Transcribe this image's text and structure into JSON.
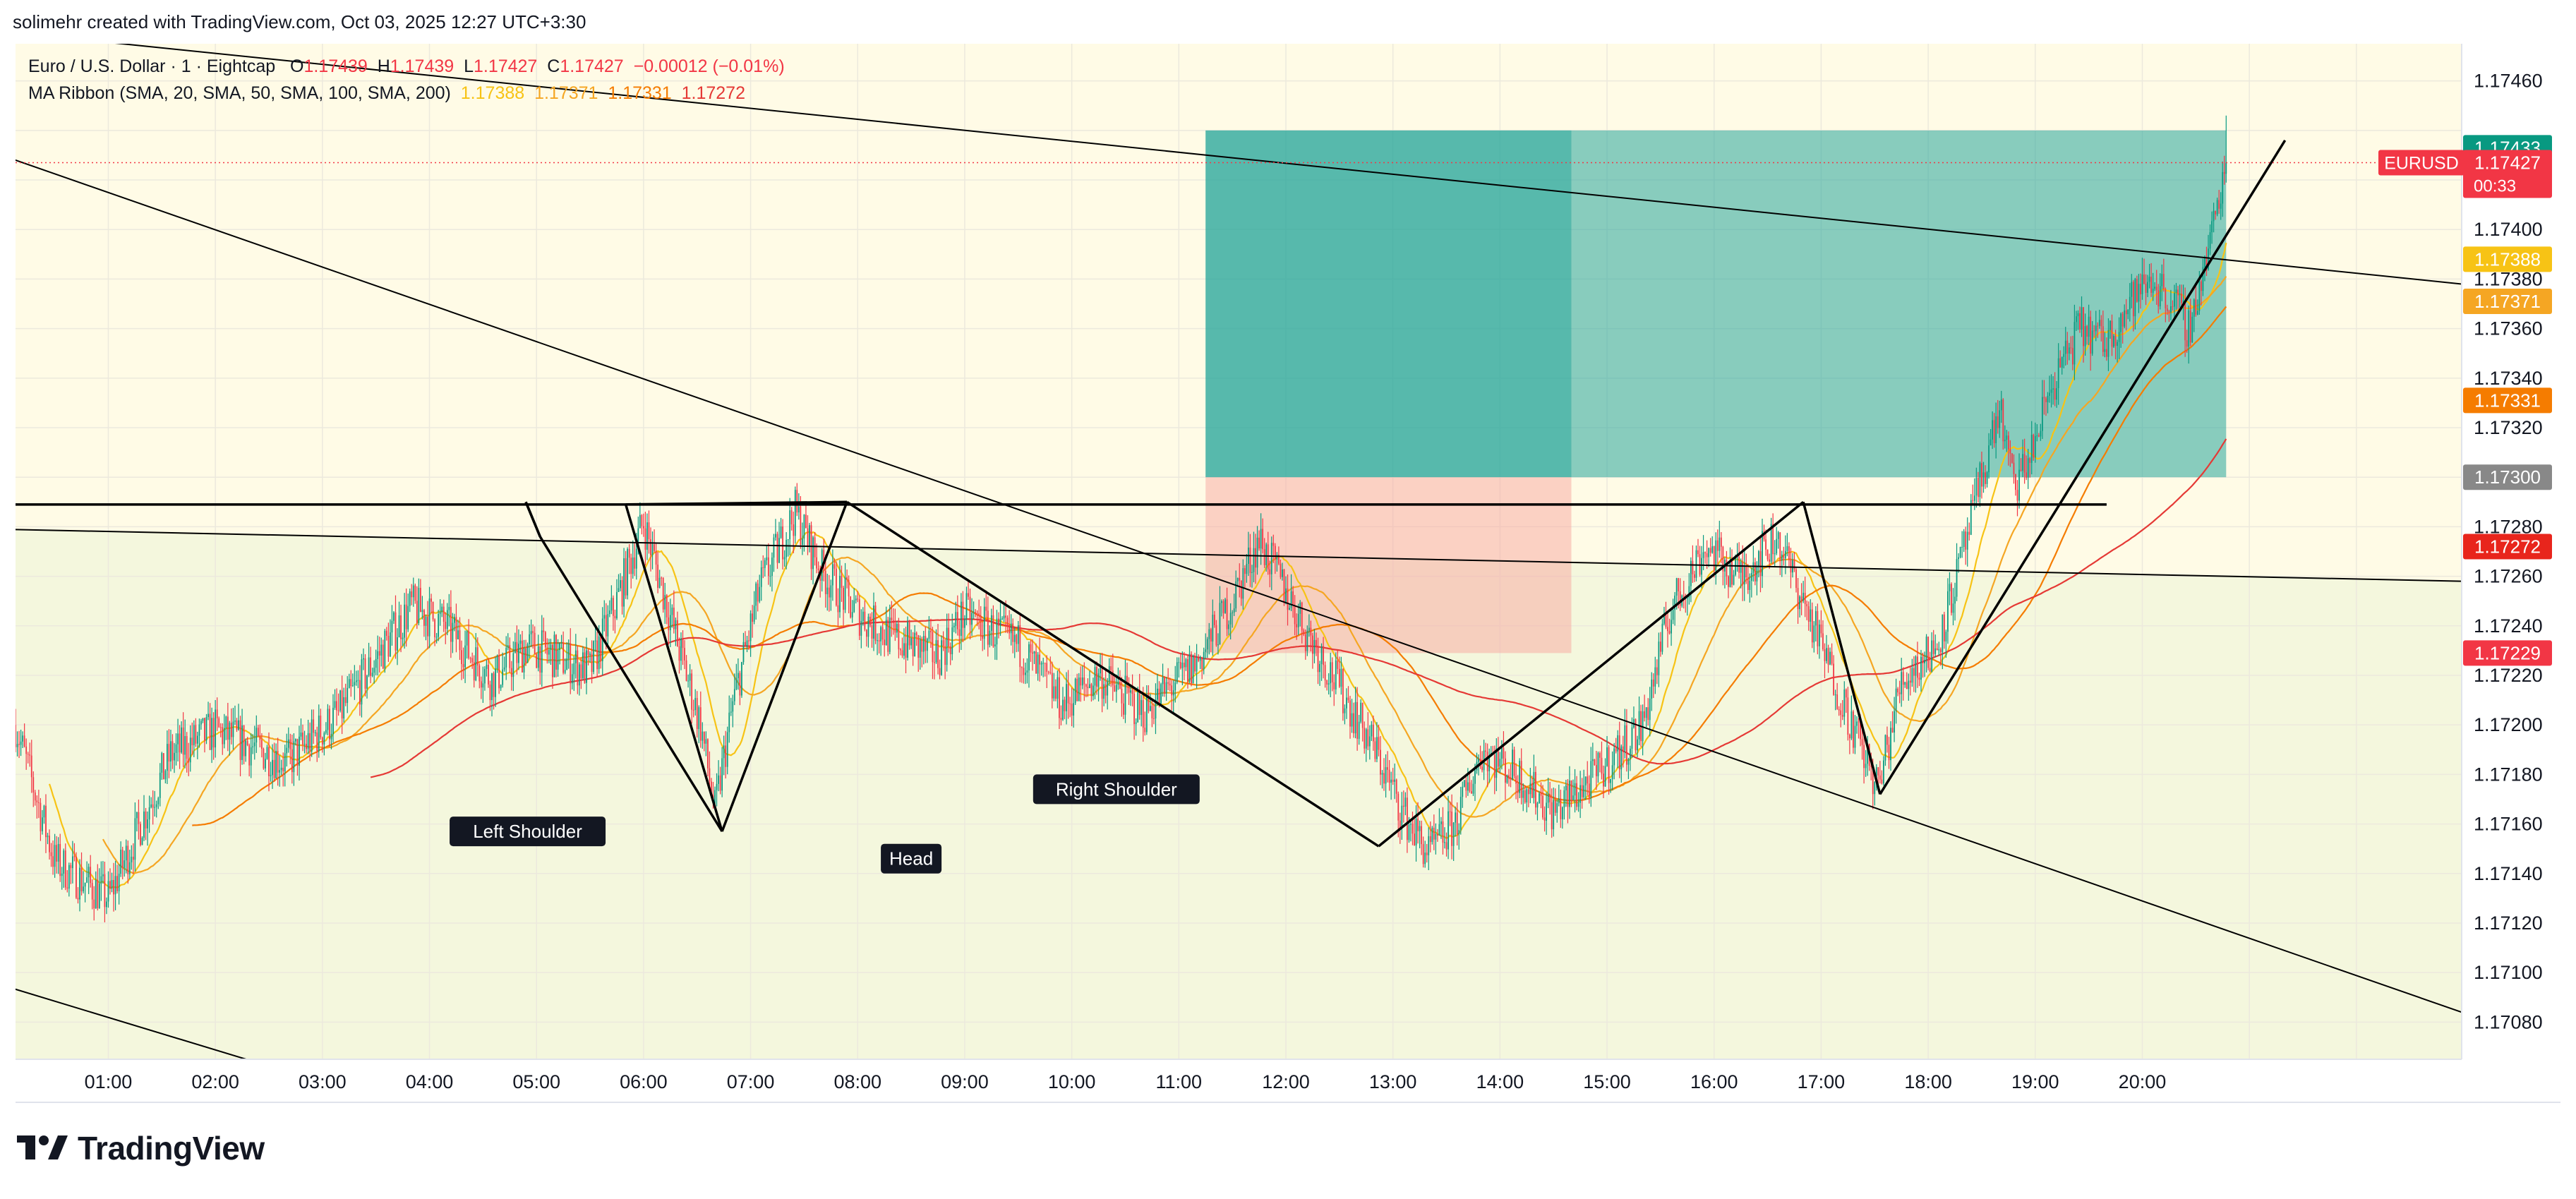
{
  "header": {
    "created_by": "solimehr created with TradingView.com, Oct 03, 2025 12:27 UTC+3:30"
  },
  "legend": {
    "symbol": "Euro / U.S. Dollar · 1 · Eightcap",
    "o_label": "O",
    "o": "1.17439",
    "h_label": "H",
    "h": "1.17439",
    "l_label": "L",
    "l": "1.17427",
    "c_label": "C",
    "c": "1.17427",
    "change": "−0.00012 (−0.01%)",
    "ma_title": "MA Ribbon (SMA, 20, SMA, 50, SMA, 100, SMA, 200)",
    "ma_values": [
      "1.17388",
      "1.17371",
      "1.17331",
      "1.17272"
    ]
  },
  "colors": {
    "up": "#089981",
    "down": "#f23645",
    "ma20": "#f7c315",
    "ma50": "#f5a623",
    "ma100": "#f57c00",
    "ma200": "#e53935",
    "tp_zone": "#26a69a",
    "sl_zone": "#f7a89f"
  },
  "brand": {
    "name": "TradingView",
    "logo": "tradingview-logo"
  },
  "chart_data": {
    "type": "candlestick",
    "symbol": "EURUSD",
    "interval": "1",
    "price_axis": {
      "range": [
        1.17065,
        1.17475
      ],
      "ticks": [
        "1.17460",
        "1.17400",
        "1.17380",
        "1.17360",
        "1.17340",
        "1.17320",
        "1.17280",
        "1.17260",
        "1.17240",
        "1.17220",
        "1.17200",
        "1.17180",
        "1.17160",
        "1.17140",
        "1.17120",
        "1.17100",
        "1.17080"
      ]
    },
    "time_axis": {
      "range": [
        "00:08",
        "22:59"
      ],
      "ticks": [
        "01:00",
        "02:00",
        "03:00",
        "04:00",
        "05:00",
        "06:00",
        "07:00",
        "08:00",
        "09:00",
        "10:00",
        "11:00",
        "12:00",
        "13:00",
        "14:00",
        "15:00",
        "16:00",
        "17:00",
        "18:00",
        "19:00",
        "20:00"
      ]
    },
    "price_tags": [
      {
        "label": "",
        "value": "1.17433",
        "price": 1.17433,
        "color": "#089981"
      },
      {
        "label": "EURUSD",
        "value": "1.17427",
        "countdown": "00:33",
        "price": 1.17427,
        "color": "#f23645"
      },
      {
        "label": "",
        "value": "1.17388",
        "price": 1.17388,
        "color": "#f7c315"
      },
      {
        "label": "",
        "value": "1.17371",
        "price": 1.17371,
        "color": "#f5a623"
      },
      {
        "label": "",
        "value": "1.17331",
        "price": 1.17331,
        "color": "#f57c00"
      },
      {
        "label": "",
        "value": "1.17300",
        "price": 1.173,
        "color": "#888888"
      },
      {
        "label": "",
        "value": "1.17272",
        "price": 1.17272,
        "color": "#e8251c"
      },
      {
        "label": "",
        "value": "1.17229",
        "price": 1.17229,
        "color": "#f23645"
      }
    ],
    "annotations": [
      {
        "text": "Left Shoulder",
        "time": "04:55",
        "price": 1.17157
      },
      {
        "text": "Head",
        "time": "08:30",
        "price": 1.17146
      },
      {
        "text": "Right Shoulder",
        "time": "10:25",
        "price": 1.17174
      }
    ],
    "neckline": {
      "price": 1.17289,
      "from": "00:08",
      "to": "19:40"
    },
    "long_position": {
      "from": "11:15",
      "to": "14:40",
      "entry": 1.173,
      "target": 1.1744,
      "stop": 1.17229
    },
    "candles_generated_between": [
      "00:08",
      "12:27"
    ]
  }
}
